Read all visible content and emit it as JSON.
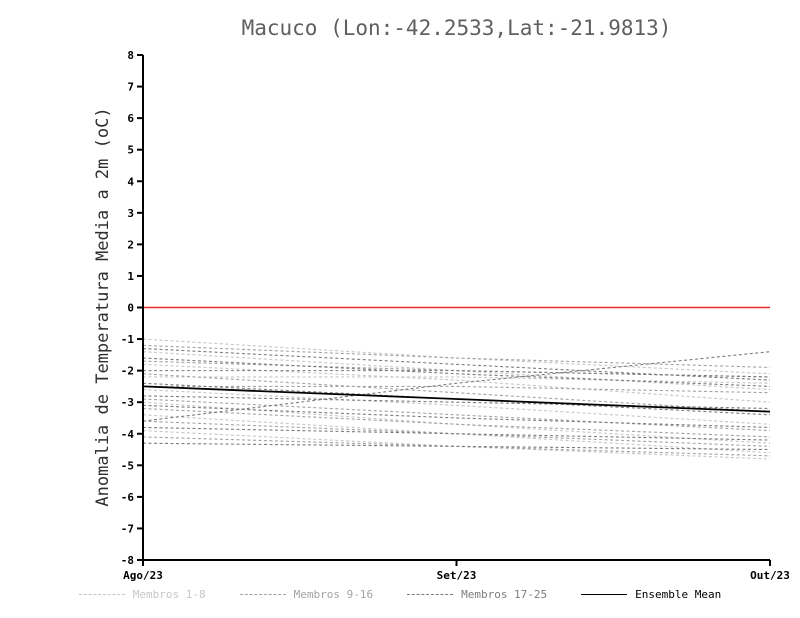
{
  "chart_data": {
    "type": "line",
    "title": "Macuco (Lon:-42.2533,Lat:-21.9813)",
    "ylabel": "Anomalia de Temperatura Media a 2m (oC)",
    "xlabel": "",
    "categories": [
      "Ago/23",
      "Set/23",
      "Out/23"
    ],
    "ylim": [
      -8,
      8
    ],
    "y_ticks": [
      8,
      7,
      6,
      5,
      4,
      3,
      2,
      1,
      0,
      -1,
      -2,
      -3,
      -4,
      -5,
      -6,
      -7,
      -8
    ],
    "grid": false,
    "legend_position": "bottom",
    "zero_line": {
      "value": 0,
      "color": "#ee2c2c"
    },
    "groups": {
      "membros_1_8": {
        "label": "Membros 1-8",
        "color": "#c6c6c6"
      },
      "membros_9_16": {
        "label": "Membros 9-16",
        "color": "#a3a3a3"
      },
      "membros_17_25": {
        "label": "Membros 17-25",
        "color": "#7d7d7d"
      }
    },
    "members": [
      {
        "name": "1",
        "group": "membros_1_8",
        "values": [
          -1.0,
          -1.6,
          -2.1
        ]
      },
      {
        "name": "2",
        "group": "membros_1_8",
        "values": [
          -1.4,
          -2.0,
          -2.6
        ]
      },
      {
        "name": "3",
        "group": "membros_1_8",
        "values": [
          -1.8,
          -2.3,
          -3.0
        ]
      },
      {
        "name": "4",
        "group": "membros_1_8",
        "values": [
          -2.2,
          -2.2,
          -2.4
        ]
      },
      {
        "name": "5",
        "group": "membros_1_8",
        "values": [
          -2.6,
          -3.1,
          -3.7
        ]
      },
      {
        "name": "6",
        "group": "membros_1_8",
        "values": [
          -3.0,
          -3.7,
          -4.3
        ]
      },
      {
        "name": "7",
        "group": "membros_1_8",
        "values": [
          -3.4,
          -4.0,
          -4.6
        ]
      },
      {
        "name": "8",
        "group": "membros_1_8",
        "values": [
          -3.9,
          -4.4,
          -4.8
        ]
      },
      {
        "name": "9",
        "group": "membros_9_16",
        "values": [
          -1.2,
          -1.6,
          -1.9
        ]
      },
      {
        "name": "10",
        "group": "membros_9_16",
        "values": [
          -1.7,
          -2.0,
          -2.2
        ]
      },
      {
        "name": "11",
        "group": "membros_9_16",
        "values": [
          -2.1,
          -2.7,
          -3.3
        ]
      },
      {
        "name": "12",
        "group": "membros_9_16",
        "values": [
          -2.5,
          -2.5,
          -2.7
        ]
      },
      {
        "name": "13",
        "group": "membros_9_16",
        "values": [
          -2.9,
          -3.4,
          -3.9
        ]
      },
      {
        "name": "14",
        "group": "membros_9_16",
        "values": [
          -3.2,
          -3.7,
          -4.1
        ]
      },
      {
        "name": "15",
        "group": "membros_9_16",
        "values": [
          -3.6,
          -4.0,
          -4.4
        ]
      },
      {
        "name": "16",
        "group": "membros_9_16",
        "values": [
          -4.1,
          -4.4,
          -4.7
        ]
      },
      {
        "name": "17",
        "group": "membros_17_25",
        "values": [
          -1.3,
          -1.8,
          -2.3
        ]
      },
      {
        "name": "18",
        "group": "membros_17_25",
        "values": [
          -1.6,
          -2.1,
          -2.5
        ]
      },
      {
        "name": "19",
        "group": "membros_17_25",
        "values": [
          -2.0,
          -2.0,
          -2.2
        ]
      },
      {
        "name": "20",
        "group": "membros_17_25",
        "values": [
          -2.4,
          -2.9,
          -3.4
        ]
      },
      {
        "name": "21",
        "group": "membros_17_25",
        "values": [
          -2.8,
          -3.0,
          -3.2
        ]
      },
      {
        "name": "22",
        "group": "membros_17_25",
        "values": [
          -3.1,
          -3.5,
          -3.8
        ]
      },
      {
        "name": "23",
        "group": "membros_17_25",
        "values": [
          -3.6,
          -2.4,
          -1.4
        ]
      },
      {
        "name": "24",
        "group": "membros_17_25",
        "values": [
          -3.8,
          -4.0,
          -4.2
        ]
      },
      {
        "name": "25",
        "group": "membros_17_25",
        "values": [
          -4.3,
          -4.4,
          -4.5
        ]
      }
    ],
    "ensemble_mean": {
      "label": "Ensemble Mean",
      "color": "#000000",
      "values": [
        -2.5,
        -2.9,
        -3.3
      ]
    },
    "legend": [
      {
        "label": "Membros 1-8",
        "color": "#c6c6c6",
        "style": "dashed"
      },
      {
        "label": "Membros 9-16",
        "color": "#a3a3a3",
        "style": "dashed"
      },
      {
        "label": "Membros 17-25",
        "color": "#7d7d7d",
        "style": "dashed"
      },
      {
        "label": "Ensemble Mean",
        "color": "#000000",
        "style": "solid"
      }
    ]
  }
}
